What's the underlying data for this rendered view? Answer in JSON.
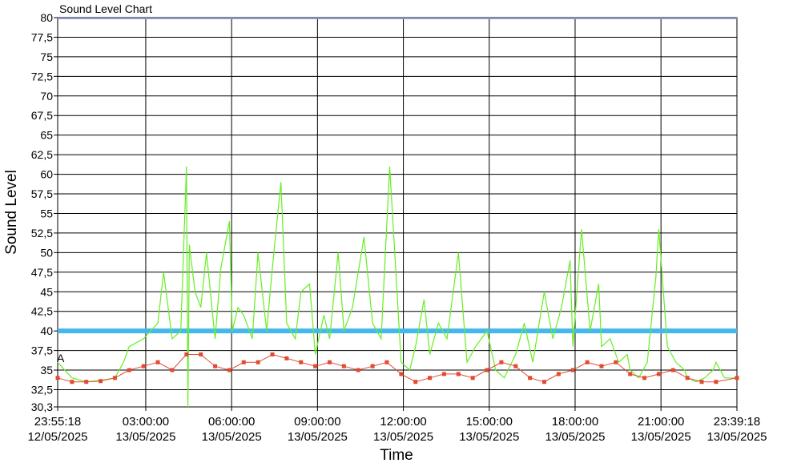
{
  "chart_data": {
    "type": "line",
    "title": "Sound Level Chart",
    "xlabel": "Time",
    "ylabel": "Sound Level",
    "ylim": [
      30.3,
      80
    ],
    "y_ticks": [
      "80",
      "77,5",
      "75",
      "72,5",
      "70",
      "67,5",
      "65",
      "62,5",
      "60",
      "57,5",
      "55",
      "52,5",
      "50",
      "47,5",
      "45",
      "42,5",
      "40",
      "37,5",
      "35",
      "32,5",
      "30,3"
    ],
    "x_ticks": [
      {
        "time": "23:55:18",
        "date": "12/05/2025"
      },
      {
        "time": "03:00:00",
        "date": "13/05/2025"
      },
      {
        "time": "06:00:00",
        "date": "13/05/2025"
      },
      {
        "time": "09:00:00",
        "date": "13/05/2025"
      },
      {
        "time": "12:00:00",
        "date": "13/05/2025"
      },
      {
        "time": "15:00:00",
        "date": "13/05/2025"
      },
      {
        "time": "18:00:00",
        "date": "13/05/2025"
      },
      {
        "time": "21:00:00",
        "date": "13/05/2025"
      },
      {
        "time": "23:39:18",
        "date": "13/05/2025"
      }
    ],
    "threshold": 40,
    "marker_label": "A",
    "grid": true,
    "colors": {
      "peak_line": "#66ee22",
      "level_marker": "#e24a33",
      "level_line": "#e24a33",
      "threshold": "#44b8ec",
      "top_line": "#8899cc",
      "grid": "#000000"
    },
    "series": [
      {
        "type": "peak-line",
        "x_hours": [
          0,
          0.5,
          1,
          1.5,
          2,
          2.3,
          2.5,
          3,
          3.5,
          3.7,
          4,
          4.3,
          4.5,
          4.55,
          4.6,
          4.8,
          5,
          5.2,
          5.5,
          5.7,
          6,
          6.1,
          6.3,
          6.5,
          6.8,
          7,
          7.3,
          7.5,
          7.8,
          8,
          8.3,
          8.5,
          8.8,
          9,
          9.3,
          9.5,
          9.8,
          10,
          10.3,
          10.7,
          11,
          11.3,
          11.6,
          12,
          12.3,
          12.5,
          12.8,
          13,
          13.3,
          13.6,
          14,
          14.3,
          14.6,
          15,
          15.3,
          15.6,
          16,
          16.3,
          16.6,
          17,
          17.3,
          17.6,
          17.9,
          18,
          18.3,
          18.6,
          18.9,
          19,
          19.3,
          19.6,
          19.9,
          20,
          20.3,
          20.6,
          20.9,
          21,
          21.3,
          21.6,
          21.9,
          22,
          22.3,
          22.6,
          22.9,
          23,
          23.3,
          23.73
        ],
        "values": [
          36,
          34,
          33.5,
          33.7,
          34,
          36,
          38,
          39,
          41,
          47.5,
          39,
          40,
          61,
          30.3,
          51,
          45,
          43,
          50,
          39,
          48,
          54,
          40,
          43,
          42,
          39,
          50,
          40,
          48,
          59,
          41,
          39,
          45,
          46,
          37,
          42,
          39,
          50,
          40,
          43,
          52,
          41,
          39,
          61,
          36,
          35,
          38,
          44,
          37,
          41,
          39,
          50,
          36,
          38,
          40,
          35,
          34,
          37,
          41,
          36,
          45,
          39,
          43,
          49,
          38,
          53,
          40,
          46,
          38,
          39,
          36,
          37,
          35,
          34,
          36,
          47,
          53,
          38,
          36,
          35,
          34,
          33.5,
          34,
          35,
          36,
          34,
          34
        ]
      },
      {
        "type": "level",
        "x_hours": [
          0,
          0.5,
          1,
          1.5,
          2,
          2.5,
          3,
          3.5,
          4,
          4.5,
          5,
          5.5,
          6,
          6.5,
          7,
          7.5,
          8,
          8.5,
          9,
          9.5,
          10,
          10.5,
          11,
          11.5,
          12,
          12.5,
          13,
          13.5,
          14,
          14.5,
          15,
          15.5,
          16,
          16.5,
          17,
          17.5,
          18,
          18.5,
          19,
          19.5,
          20,
          20.5,
          21,
          21.5,
          22,
          22.5,
          23,
          23.73
        ],
        "values": [
          34,
          33.5,
          33.5,
          33.6,
          34,
          35,
          35.5,
          36,
          35,
          37,
          37,
          35.5,
          35,
          36,
          36,
          37,
          36.5,
          36,
          35.5,
          36,
          35.5,
          35,
          35.5,
          36,
          34.5,
          33.5,
          34,
          34.5,
          34.5,
          34,
          35,
          36,
          35.5,
          34,
          33.5,
          34.5,
          35,
          36,
          35.5,
          36,
          34.5,
          34,
          34.5,
          35,
          34,
          33.5,
          33.5,
          34
        ]
      }
    ]
  }
}
